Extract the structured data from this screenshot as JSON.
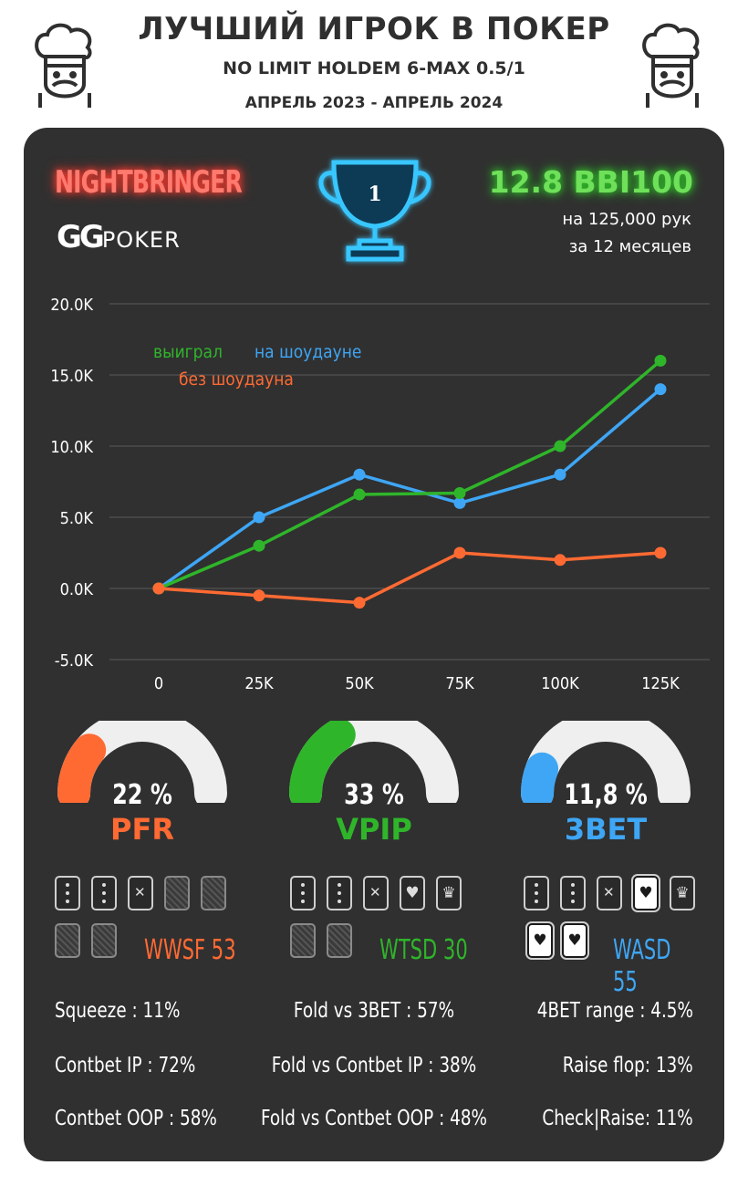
{
  "header": {
    "title": "ЛУЧШИЙ ИГРОК В ПОКЕР",
    "subtitle": "NO LIMIT HOLDEM 6-MAX 0.5/1",
    "period": "АПРЕЛЬ 2023 - АПРЕЛЬ 2024"
  },
  "player": {
    "name": "NIGHTBRINGER",
    "brand_gg": "GG",
    "brand_poker": "POKER",
    "rank": "1"
  },
  "winrate": {
    "value": "12.8 BBI100",
    "hands": "на 125,000 рук",
    "months": "за  12 месяцев"
  },
  "colors": {
    "green": "#2fb52a",
    "blue": "#3ea6f5",
    "orange": "#ff6a33",
    "bg": "#303030"
  },
  "chart_data": {
    "type": "line",
    "x": [
      0,
      25000,
      50000,
      75000,
      100000,
      125000
    ],
    "x_tick_labels": [
      "0",
      "25K",
      "50K",
      "75K",
      "100K",
      "125K"
    ],
    "y_tick_labels": [
      "20.0K",
      "15.0K",
      "10.0K",
      "5.0K",
      "0.0K",
      "-5.0K"
    ],
    "y_ticks": [
      20000,
      15000,
      10000,
      5000,
      0,
      -5000
    ],
    "ylim": [
      -5000,
      20000
    ],
    "grid": true,
    "series": [
      {
        "name": "выиграл",
        "color": "#2fb52a",
        "values": [
          0,
          3000,
          6600,
          6700,
          10000,
          16000
        ]
      },
      {
        "name": "на шоудауне",
        "color": "#3ea6f5",
        "values": [
          0,
          5000,
          8000,
          6000,
          8000,
          14000
        ]
      },
      {
        "name": "без шоудауна",
        "color": "#ff6a33",
        "values": [
          0,
          -500,
          -1000,
          2500,
          2000,
          2500
        ]
      }
    ]
  },
  "gauges": [
    {
      "value": "22 %",
      "fraction": 0.22,
      "label": "PFR",
      "color": "#ff6a33"
    },
    {
      "value": "33 %",
      "fraction": 0.33,
      "label": "VPIP",
      "color": "#2fb52a"
    },
    {
      "value": "11,8 %",
      "fraction": 0.118,
      "label": "3BET",
      "color": "#3ea6f5"
    }
  ],
  "card_stats": [
    {
      "label": "WWSF 53",
      "color": "#ff6a33"
    },
    {
      "label": "WTSD 30",
      "color": "#2fb52a"
    },
    {
      "label": "WASD 55",
      "color": "#3ea6f5"
    }
  ],
  "stats": {
    "left": [
      "Squeeze : 11%",
      "Contbet IP : 72%",
      "Contbet OOP : 58%"
    ],
    "center": [
      "Fold vs 3BET : 57%",
      "Fold vs Contbet IP : 38%",
      "Fold vs Contbet OOP : 48%"
    ],
    "right": [
      "4BET range : 4.5%",
      "Raise flop: 13%",
      "Check|Raise: 11%"
    ]
  }
}
